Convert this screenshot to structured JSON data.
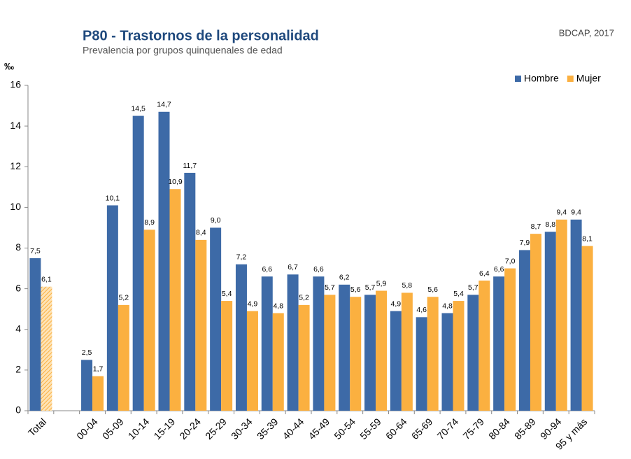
{
  "chart_data": {
    "type": "bar",
    "title": "P80 - Trastornos de la personalidad",
    "subtitle": "Prevalencia por grupos quinquenales de edad",
    "source": "BDCAP, 2017",
    "y_label": "‰",
    "categories": [
      "Total",
      null,
      "00-04",
      "05-09",
      "10-14",
      "15-19",
      "20-24",
      "25-29",
      "30-34",
      "35-39",
      "40-44",
      "45-49",
      "50-54",
      "55-59",
      "60-64",
      "65-69",
      "70-74",
      "75-79",
      "80-84",
      "85-89",
      "90-94",
      "95 y más"
    ],
    "series": [
      {
        "name": "Hombre",
        "color": "#3d6aa7",
        "values": [
          7.5,
          null,
          2.5,
          10.1,
          14.5,
          14.7,
          11.7,
          9.0,
          7.2,
          6.6,
          6.7,
          6.6,
          6.2,
          5.7,
          4.9,
          4.6,
          4.8,
          5.7,
          6.6,
          7.9,
          8.8,
          9.4
        ],
        "value_labels": [
          "7,5",
          null,
          "2,5",
          "10,1",
          "14,5",
          "14,7",
          "11,7",
          "9,0",
          "7,2",
          "6,6",
          "6,7",
          "6,6",
          "6,2",
          "5,7",
          "4,9",
          "4,6",
          "4,8",
          "5,7",
          "6,6",
          "7,9",
          "8,8",
          "9,4"
        ]
      },
      {
        "name": "Mujer",
        "color": "#fbb040",
        "values": [
          6.1,
          null,
          1.7,
          5.2,
          8.9,
          10.9,
          8.4,
          5.4,
          4.9,
          4.8,
          5.2,
          5.7,
          5.6,
          5.9,
          5.8,
          5.6,
          5.4,
          6.4,
          7.0,
          8.7,
          9.4,
          8.1
        ],
        "value_labels": [
          "6,1",
          null,
          "1,7",
          "5,2",
          "8,9",
          "10,9",
          "8,4",
          "5,4",
          "4,9",
          "4,8",
          "5,2",
          "5,7",
          "5,6",
          "5,9",
          "5,8",
          "5,6",
          "5,4",
          "6,4",
          "7,0",
          "8,7",
          "9,4",
          "8,1"
        ]
      }
    ],
    "ylim": [
      0,
      16
    ],
    "yticks": [
      0,
      2,
      4,
      6,
      8,
      10,
      12,
      14,
      16
    ],
    "grid": false,
    "legend": "top-right"
  }
}
